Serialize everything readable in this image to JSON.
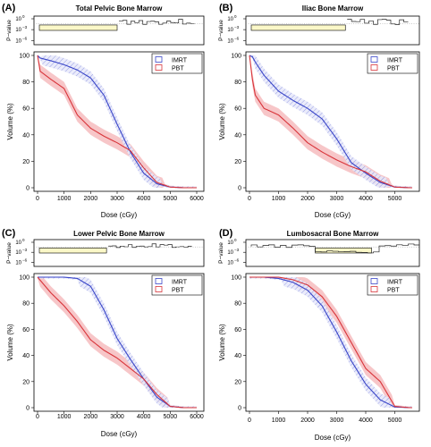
{
  "figure": {
    "colors": {
      "imrt": "#3a46c8",
      "pbt": "#d8343a",
      "pbt_band": "#f4b3b6",
      "imrt_hatch": "#6c76d8",
      "pval_fill": "#fbf8c8",
      "axis": "#000000"
    },
    "pvalue_ylabel": "P−value",
    "pvalue_ticks": [
      "10",
      "10",
      "10"
    ],
    "pvalue_tick_exps": [
      "0",
      "−3",
      "−6"
    ],
    "volume_ticks": [
      "0",
      "20",
      "40",
      "60",
      "80",
      "100"
    ]
  },
  "panels": [
    {
      "label": "(A)",
      "title": "Total Pelvic Bone Marrow"
    },
    {
      "label": "(B)",
      "title": "Iliac Bone Marrow"
    },
    {
      "label": "(C)",
      "title": "Lower Pelvic Bone Marrow"
    },
    {
      "label": "(D)",
      "title": "Lumbosacral Bone Marrow"
    }
  ],
  "chart_data": [
    {
      "type": "line",
      "title": "Total Pelvic Bone Marrow",
      "xlabel": "Dose (cGy)",
      "ylabel": "Volume (%)",
      "xlim": [
        0,
        6000
      ],
      "ylim": [
        0,
        100
      ],
      "xticks": [
        0,
        1000,
        2000,
        3000,
        4000,
        5000,
        6000
      ],
      "legend": "top-right",
      "series": [
        {
          "name": "IMRT",
          "x": [
            0,
            100,
            500,
            1000,
            1500,
            2000,
            2500,
            3000,
            3500,
            4000,
            4500,
            5000,
            5500,
            6000
          ],
          "values": [
            100,
            98,
            96,
            93,
            89,
            83,
            70,
            48,
            27,
            11,
            3,
            0.5,
            0,
            0
          ]
        },
        {
          "name": "PBT",
          "x": [
            0,
            100,
            500,
            1000,
            1500,
            2000,
            2500,
            3000,
            3500,
            4000,
            4500,
            5000,
            5500,
            6000
          ],
          "values": [
            100,
            88,
            82,
            75,
            55,
            45,
            39,
            34,
            28,
            15,
            4,
            0.5,
            0,
            0
          ]
        }
      ],
      "pvalue": {
        "ylabel": "P−value",
        "low_dose_range": [
          0,
          3000
        ]
      }
    },
    {
      "type": "line",
      "title": "Iliac Bone Marrow",
      "xlabel": "Dose (cGy)",
      "ylabel": "Volume (%)",
      "xlim": [
        0,
        5000
      ],
      "ylim": [
        0,
        100
      ],
      "xticks": [
        0,
        1000,
        2000,
        3000,
        4000,
        5000
      ],
      "legend": "top-right",
      "series": [
        {
          "name": "IMRT",
          "x": [
            0,
            100,
            200,
            500,
            1000,
            1500,
            2000,
            2500,
            3000,
            3500,
            4000,
            4500,
            5000,
            5500
          ],
          "values": [
            100,
            99,
            95,
            85,
            73,
            66,
            60,
            52,
            37,
            19,
            11,
            4,
            0.5,
            0
          ]
        },
        {
          "name": "PBT",
          "x": [
            0,
            100,
            200,
            500,
            1000,
            1500,
            2000,
            2500,
            3000,
            3500,
            4000,
            4500,
            5000,
            5500
          ],
          "values": [
            100,
            82,
            70,
            60,
            55,
            45,
            34,
            27,
            21,
            16,
            12,
            5,
            0.5,
            0
          ]
        }
      ],
      "pvalue": {
        "ylabel": "P−value",
        "low_dose_range": [
          0,
          3300
        ]
      }
    },
    {
      "type": "line",
      "title": "Lower Pelvic Bone Marrow",
      "xlabel": "Dose (cGy)",
      "ylabel": "Volume (%)",
      "xlim": [
        0,
        6000
      ],
      "ylim": [
        0,
        100
      ],
      "xticks": [
        0,
        1000,
        2000,
        3000,
        4000,
        5000,
        6000
      ],
      "legend": "top-right",
      "series": [
        {
          "name": "IMRT",
          "x": [
            0,
            500,
            1000,
            1500,
            2000,
            2500,
            3000,
            3500,
            4000,
            4500,
            5000,
            5500,
            6000
          ],
          "values": [
            100,
            100,
            100,
            99,
            93,
            75,
            53,
            37,
            22,
            8,
            1,
            0,
            0
          ]
        },
        {
          "name": "PBT",
          "x": [
            0,
            500,
            1000,
            1500,
            2000,
            2500,
            3000,
            3500,
            4000,
            4500,
            5000,
            5500,
            6000
          ],
          "values": [
            100,
            88,
            78,
            66,
            52,
            44,
            38,
            30,
            22,
            10,
            1,
            0,
            0
          ]
        }
      ],
      "pvalue": {
        "ylabel": "P−value",
        "low_dose_range": [
          0,
          2600
        ]
      }
    },
    {
      "type": "line",
      "title": "Lumbosacral Bone Marrow",
      "xlabel": "Dose (cGy)",
      "ylabel": "Volume (%)",
      "xlim": [
        0,
        5000
      ],
      "ylim": [
        0,
        100
      ],
      "xticks": [
        0,
        1000,
        2000,
        3000,
        4000,
        5000
      ],
      "legend": "top-right",
      "series": [
        {
          "name": "IMRT",
          "x": [
            0,
            500,
            1000,
            1500,
            2000,
            2500,
            3000,
            3500,
            4000,
            4500,
            5000,
            5500
          ],
          "values": [
            100,
            100,
            99,
            96,
            90,
            78,
            58,
            36,
            18,
            6,
            0.5,
            0
          ]
        },
        {
          "name": "PBT",
          "x": [
            0,
            500,
            1000,
            1500,
            2000,
            2500,
            3000,
            3500,
            4000,
            4500,
            5000,
            5500
          ],
          "values": [
            100,
            100,
            100,
            98,
            94,
            85,
            70,
            50,
            30,
            20,
            1,
            0
          ]
        }
      ],
      "pvalue": {
        "ylabel": "P−value",
        "low_dose_range": [
          2200,
          4200
        ]
      }
    }
  ]
}
